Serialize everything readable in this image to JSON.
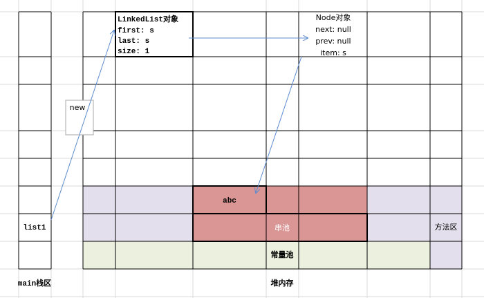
{
  "stack": {
    "variable": "list1",
    "label": "main栈区"
  },
  "heap": {
    "label": "堆内存",
    "linked_list": {
      "title": "LinkedList对象",
      "fields": [
        "first: s",
        "last: s",
        "size: 1"
      ]
    },
    "node": {
      "title": "Node对象",
      "fields": [
        "next: null",
        "prev: null",
        "item: s"
      ]
    },
    "new_label": "new",
    "string_value": "abc",
    "string_pool": "串池",
    "constant_pool": "常量池"
  },
  "method_area": "方法区"
}
